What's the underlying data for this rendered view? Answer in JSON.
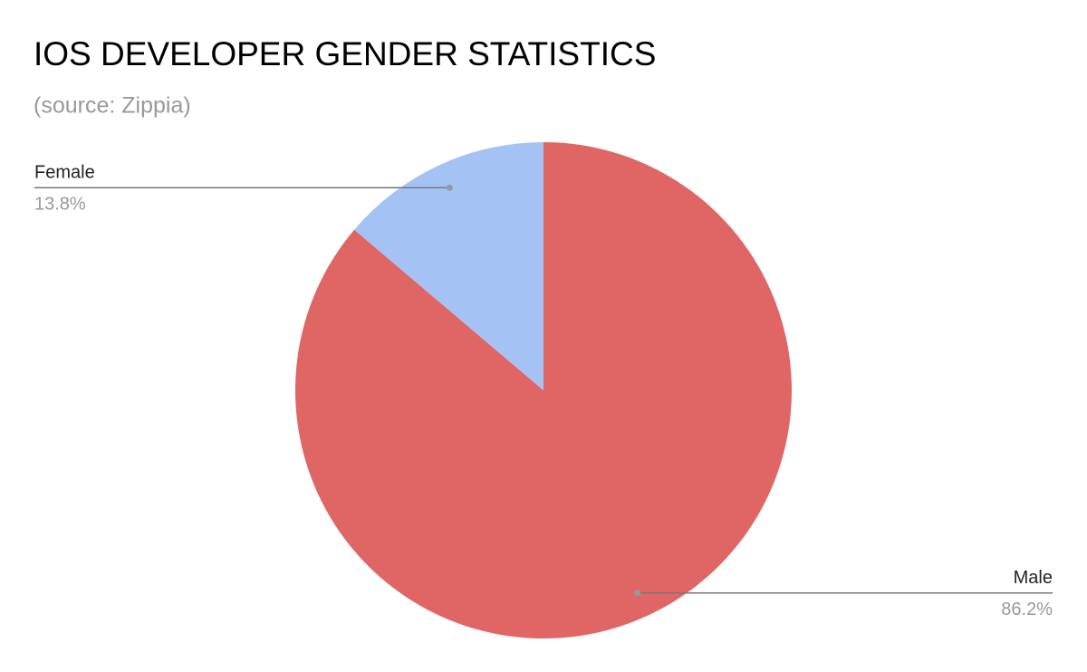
{
  "chart_data": {
    "type": "pie",
    "title": "IOS DEVELOPER GENDER STATISTICS",
    "subtitle": "(source: Zippia)",
    "categories": [
      "Male",
      "Female"
    ],
    "values": [
      86.2,
      13.8
    ],
    "value_labels": [
      "86.2%",
      "13.8%"
    ],
    "colors": [
      "#e06666",
      "#a4c2f4"
    ]
  }
}
